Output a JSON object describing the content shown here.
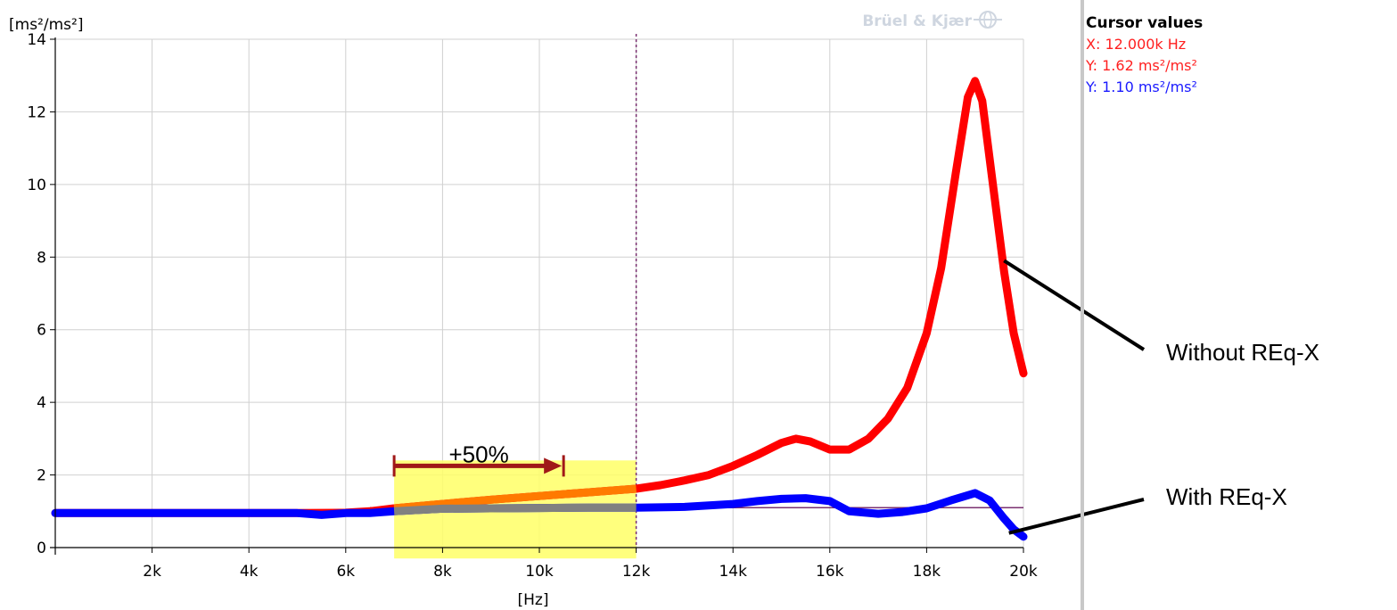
{
  "brand": {
    "text": "Brüel & Kjær"
  },
  "cursor_panel": {
    "title": "Cursor values",
    "x_value": "X: 12.000k Hz",
    "y_red": "Y: 1.62 ms²/ms²",
    "y_blue": "Y: 1.10 ms²/ms²"
  },
  "colors": {
    "without": "#ff0000",
    "with": "#0000ff",
    "highlight": "#ffff66",
    "overlap_orange": "#ff7a00",
    "overlap_gray": "#808080",
    "bracket": "#a01818",
    "cursor": "#7a3070",
    "grid": "#d0d0d0"
  },
  "chart_data": {
    "type": "line",
    "xlabel": "[Hz]",
    "ylabel": "[ms²/ms²]",
    "xlim": [
      0,
      20000
    ],
    "ylim": [
      0,
      14
    ],
    "grid": true,
    "x_ticks": [
      2000,
      4000,
      6000,
      8000,
      10000,
      12000,
      14000,
      16000,
      18000,
      20000
    ],
    "x_tick_labels": [
      "2k",
      "4k",
      "6k",
      "8k",
      "10k",
      "12k",
      "14k",
      "16k",
      "18k",
      "20k"
    ],
    "y_ticks": [
      0,
      2,
      4,
      6,
      8,
      10,
      12,
      14
    ],
    "y_tick_labels": [
      "0",
      "2",
      "4",
      "6",
      "8",
      "10",
      "12",
      "14"
    ],
    "cursor_x": 12000,
    "reference_y": 1.1,
    "highlight_range": {
      "x": [
        7000,
        12000
      ],
      "y": [
        -0.3,
        2.4
      ]
    },
    "bracket": {
      "x": [
        7000,
        10500
      ],
      "y": 2.25,
      "label": "+50%"
    },
    "series": [
      {
        "legend_label": "Without REq-X",
        "color_key": "without",
        "points": [
          [
            0,
            0.95
          ],
          [
            1000,
            0.95
          ],
          [
            2000,
            0.95
          ],
          [
            3000,
            0.95
          ],
          [
            4000,
            0.95
          ],
          [
            5000,
            0.95
          ],
          [
            6000,
            0.96
          ],
          [
            6500,
            1.0
          ],
          [
            7000,
            1.08
          ],
          [
            8000,
            1.2
          ],
          [
            9000,
            1.32
          ],
          [
            10000,
            1.42
          ],
          [
            11000,
            1.52
          ],
          [
            12000,
            1.62
          ],
          [
            12500,
            1.72
          ],
          [
            13000,
            1.85
          ],
          [
            13500,
            2.0
          ],
          [
            14000,
            2.25
          ],
          [
            14500,
            2.55
          ],
          [
            15000,
            2.88
          ],
          [
            15300,
            3.0
          ],
          [
            15600,
            2.92
          ],
          [
            16000,
            2.7
          ],
          [
            16400,
            2.7
          ],
          [
            16800,
            3.0
          ],
          [
            17200,
            3.55
          ],
          [
            17600,
            4.4
          ],
          [
            18000,
            5.9
          ],
          [
            18300,
            7.7
          ],
          [
            18600,
            10.3
          ],
          [
            18850,
            12.4
          ],
          [
            19000,
            12.85
          ],
          [
            19150,
            12.3
          ],
          [
            19350,
            10.2
          ],
          [
            19600,
            7.6
          ],
          [
            19800,
            5.9
          ],
          [
            20000,
            4.8
          ]
        ]
      },
      {
        "legend_label": "With REq-X",
        "color_key": "with",
        "points": [
          [
            0,
            0.95
          ],
          [
            2000,
            0.95
          ],
          [
            4000,
            0.95
          ],
          [
            5000,
            0.95
          ],
          [
            5500,
            0.9
          ],
          [
            6000,
            0.95
          ],
          [
            6500,
            0.95
          ],
          [
            7000,
            1.0
          ],
          [
            8000,
            1.07
          ],
          [
            9000,
            1.08
          ],
          [
            10000,
            1.09
          ],
          [
            11000,
            1.1
          ],
          [
            12000,
            1.1
          ],
          [
            13000,
            1.12
          ],
          [
            14000,
            1.2
          ],
          [
            14500,
            1.28
          ],
          [
            15000,
            1.34
          ],
          [
            15500,
            1.36
          ],
          [
            16000,
            1.28
          ],
          [
            16400,
            1.0
          ],
          [
            17000,
            0.93
          ],
          [
            17500,
            0.98
          ],
          [
            18000,
            1.08
          ],
          [
            18500,
            1.3
          ],
          [
            19000,
            1.5
          ],
          [
            19300,
            1.3
          ],
          [
            19600,
            0.8
          ],
          [
            19800,
            0.5
          ],
          [
            20000,
            0.3
          ]
        ]
      }
    ],
    "annotations": [
      {
        "text": "Without REq-X",
        "point_at": [
          19600,
          7.9
        ]
      },
      {
        "text": "With REq-X",
        "point_at": [
          19700,
          0.4
        ]
      }
    ]
  }
}
